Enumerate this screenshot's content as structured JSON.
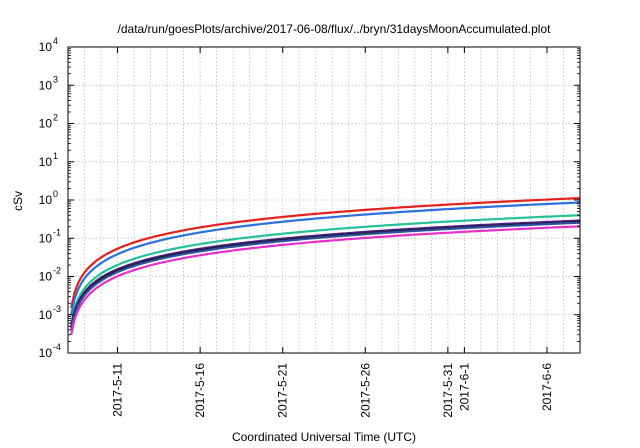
{
  "chart_data": {
    "type": "line",
    "title": "/data/run/goesPlots/archive/2017-06-08/flux/../bryn/31daysMoonAccumulated.plot",
    "xlabel": "Coordinated Universal Time (UTC)",
    "ylabel": "cSv",
    "yscale": "log",
    "ylim": [
      0.0001,
      10000
    ],
    "xlim": [
      "2017-05-08",
      "2017-06-08"
    ],
    "grid": true,
    "y_ticks": [
      {
        "base": "10",
        "exp": "-4",
        "value": 0.0001
      },
      {
        "base": "10",
        "exp": "-3",
        "value": 0.001
      },
      {
        "base": "10",
        "exp": "-2",
        "value": 0.01
      },
      {
        "base": "10",
        "exp": "-1",
        "value": 0.1
      },
      {
        "base": "10",
        "exp": "0",
        "value": 1
      },
      {
        "base": "10",
        "exp": "1",
        "value": 10
      },
      {
        "base": "10",
        "exp": "2",
        "value": 100
      },
      {
        "base": "10",
        "exp": "3",
        "value": 1000
      },
      {
        "base": "10",
        "exp": "4",
        "value": 10000
      }
    ],
    "x_ticks": [
      {
        "label": "2017-5-11",
        "date": "2017-05-11"
      },
      {
        "label": "2017-5-16",
        "date": "2017-05-16"
      },
      {
        "label": "2017-5-21",
        "date": "2017-05-21"
      },
      {
        "label": "2017-5-26",
        "date": "2017-05-26"
      },
      {
        "label": "2017-5-31",
        "date": "2017-05-31"
      },
      {
        "label": "2017-6-1",
        "date": "2017-06-01"
      },
      {
        "label": "2017-6-6",
        "date": "2017-06-06"
      }
    ],
    "series": [
      {
        "color": "#e4201c",
        "start": 0.0015,
        "end": 1.12
      },
      {
        "color": "#2b6fe0",
        "start": 0.001,
        "end": 0.86
      },
      {
        "color": "#24c09a",
        "start": 0.0006,
        "end": 0.4
      },
      {
        "color": "#4a1f8a",
        "start": 0.0005,
        "end": 0.29
      },
      {
        "color": "#1a1a1a",
        "start": 0.00045,
        "end": 0.265
      },
      {
        "color": "#2f4fa0",
        "start": 0.0004,
        "end": 0.255
      },
      {
        "color": "#e830c8",
        "start": 0.0003,
        "end": 0.205
      }
    ]
  }
}
